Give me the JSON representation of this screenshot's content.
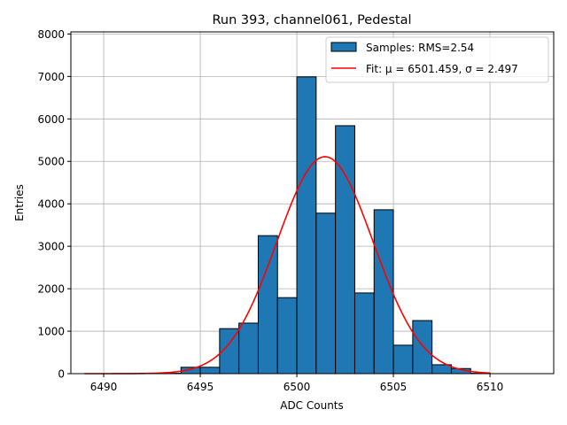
{
  "chart_data": {
    "type": "bar",
    "title": "Run 393, channel061, Pedestal",
    "xlabel": "ADC Counts",
    "ylabel": "Entries",
    "xlim": [
      6488.3,
      6513.3
    ],
    "ylim": [
      0,
      8050
    ],
    "xticks": [
      6490,
      6495,
      6500,
      6505,
      6510
    ],
    "yticks": [
      0,
      1000,
      2000,
      3000,
      4000,
      5000,
      6000,
      7000,
      8000
    ],
    "grid": true,
    "legend_position": "top-right",
    "histogram": {
      "name": "Samples: RMS=2.54",
      "color": "#1f77b4",
      "edgecolor": "#000000",
      "bin_edges": [
        6493,
        6494,
        6495,
        6496,
        6497,
        6498,
        6499,
        6500,
        6501,
        6502,
        6503,
        6504,
        6505,
        6506,
        6507,
        6508,
        6509,
        6510
      ],
      "counts": [
        10,
        150,
        150,
        1060,
        1190,
        3250,
        1790,
        6990,
        3780,
        5840,
        1900,
        3860,
        670,
        1250,
        210,
        120,
        10
      ]
    },
    "fit": {
      "name": "Fit: μ = 6501.459, σ = 2.497",
      "color": "#ff0000",
      "mu": 6501.459,
      "sigma": 2.497,
      "amplitude": 5110,
      "x_range": [
        6489,
        6510
      ]
    }
  }
}
